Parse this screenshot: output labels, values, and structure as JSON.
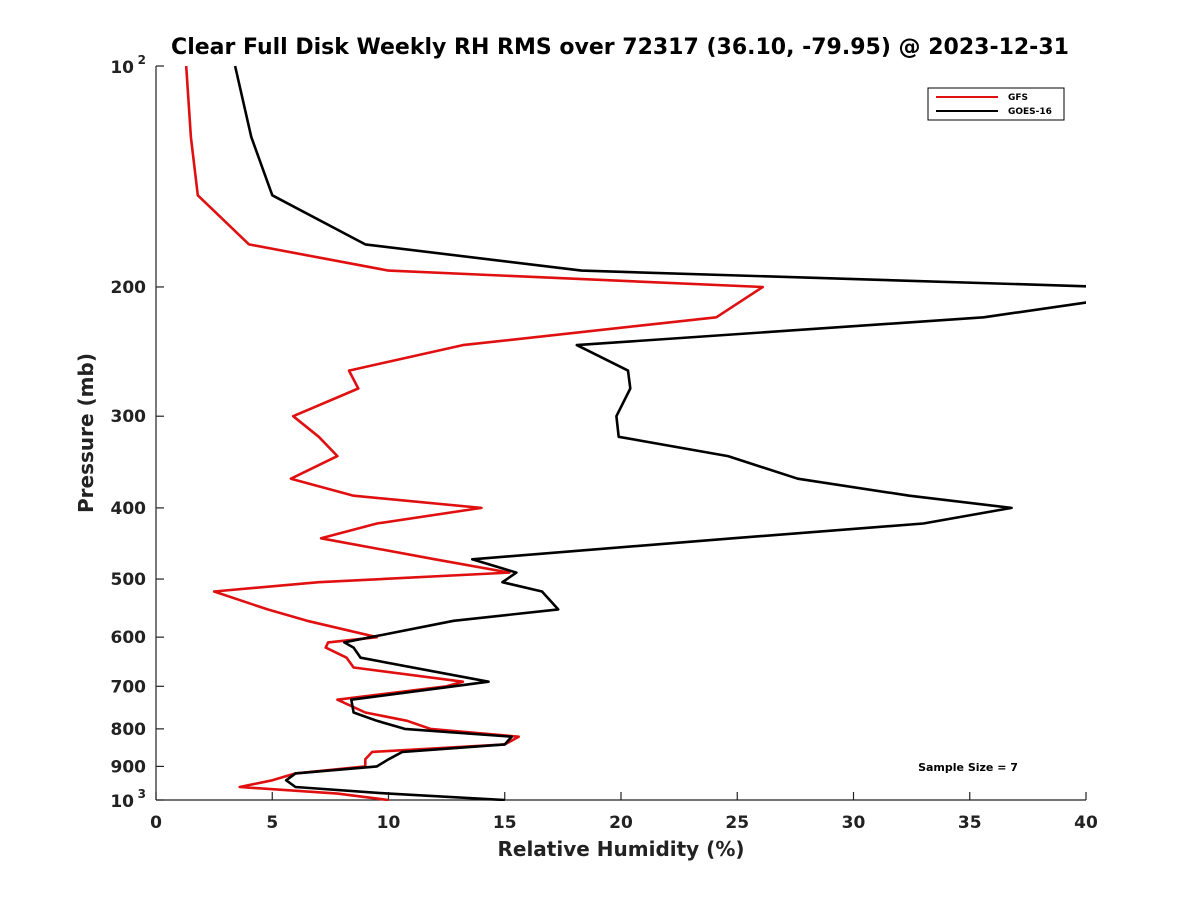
{
  "chart_data": {
    "type": "line",
    "title": "Clear Full Disk Weekly RH RMS over 72317 (36.10, -79.95) @ 2023-12-31",
    "xlabel": "Relative Humidity (%)",
    "ylabel": "Pressure (mb)",
    "xlim": [
      0,
      40
    ],
    "ylim": [
      100,
      1000
    ],
    "y_scale": "log",
    "y_direction": "reversed",
    "x_ticks": [
      "0",
      "5",
      "10",
      "15",
      "20",
      "25",
      "30",
      "35",
      "40"
    ],
    "x_tick_values": [
      0,
      5,
      10,
      15,
      20,
      25,
      30,
      35,
      40
    ],
    "y_ticks": [
      {
        "value": 100,
        "base": "10",
        "exp": "2"
      },
      {
        "value": 200,
        "label": "200"
      },
      {
        "value": 300,
        "label": "300"
      },
      {
        "value": 400,
        "label": "400"
      },
      {
        "value": 500,
        "label": "500"
      },
      {
        "value": 600,
        "label": "600"
      },
      {
        "value": 700,
        "label": "700"
      },
      {
        "value": 800,
        "label": "800"
      },
      {
        "value": 900,
        "label": "900"
      },
      {
        "value": 1000,
        "base": "10",
        "exp": "3"
      }
    ],
    "grid": false,
    "legend_position": "top-right",
    "annotation": "Sample Size = 7",
    "series": [
      {
        "name": "GFS",
        "color": "#e01010",
        "points": [
          [
            1.3,
            100
          ],
          [
            1.5,
            125
          ],
          [
            1.8,
            150
          ],
          [
            4.0,
            175
          ],
          [
            10.0,
            190
          ],
          [
            26.1,
            200
          ],
          [
            24.1,
            220
          ],
          [
            13.2,
            240
          ],
          [
            8.3,
            260
          ],
          [
            8.7,
            275
          ],
          [
            5.9,
            300
          ],
          [
            7.0,
            320
          ],
          [
            7.8,
            340
          ],
          [
            5.8,
            365
          ],
          [
            8.5,
            385
          ],
          [
            14.0,
            400
          ],
          [
            9.5,
            420
          ],
          [
            7.1,
            440
          ],
          [
            12.0,
            470
          ],
          [
            15.2,
            490
          ],
          [
            7.0,
            505
          ],
          [
            2.5,
            520
          ],
          [
            4.8,
            550
          ],
          [
            6.5,
            570
          ],
          [
            9.5,
            600
          ],
          [
            7.4,
            610
          ],
          [
            7.3,
            620
          ],
          [
            8.2,
            640
          ],
          [
            8.5,
            660
          ],
          [
            13.2,
            690
          ],
          [
            12.5,
            700
          ],
          [
            7.8,
            730
          ],
          [
            9.0,
            760
          ],
          [
            10.8,
            780
          ],
          [
            11.8,
            800
          ],
          [
            15.6,
            820
          ],
          [
            15.0,
            840
          ],
          [
            9.3,
            860
          ],
          [
            9.0,
            880
          ],
          [
            9.0,
            900
          ],
          [
            6.0,
            920
          ],
          [
            5.0,
            940
          ],
          [
            3.6,
            960
          ],
          [
            7.8,
            980
          ],
          [
            10.0,
            1000
          ]
        ]
      },
      {
        "name": "GOES-16",
        "color": "#000000",
        "points": [
          [
            3.4,
            100
          ],
          [
            4.1,
            125
          ],
          [
            5.0,
            150
          ],
          [
            9.0,
            175
          ],
          [
            18.3,
            190
          ],
          [
            41.0,
            200
          ],
          [
            40.0,
            210
          ],
          [
            35.6,
            220
          ],
          [
            18.1,
            240
          ],
          [
            20.3,
            260
          ],
          [
            20.4,
            275
          ],
          [
            19.8,
            300
          ],
          [
            19.9,
            320
          ],
          [
            24.6,
            340
          ],
          [
            27.6,
            365
          ],
          [
            32.4,
            385
          ],
          [
            36.8,
            400
          ],
          [
            33.0,
            420
          ],
          [
            24.8,
            440
          ],
          [
            13.6,
            470
          ],
          [
            15.5,
            490
          ],
          [
            14.9,
            505
          ],
          [
            16.6,
            520
          ],
          [
            17.3,
            550
          ],
          [
            12.8,
            570
          ],
          [
            8.1,
            610
          ],
          [
            8.5,
            620
          ],
          [
            8.8,
            640
          ],
          [
            14.3,
            690
          ],
          [
            12.8,
            700
          ],
          [
            8.4,
            730
          ],
          [
            8.5,
            760
          ],
          [
            9.5,
            780
          ],
          [
            10.7,
            800
          ],
          [
            15.3,
            820
          ],
          [
            15.0,
            840
          ],
          [
            10.6,
            860
          ],
          [
            10.0,
            880
          ],
          [
            9.5,
            900
          ],
          [
            6.0,
            920
          ],
          [
            5.6,
            940
          ],
          [
            6.0,
            960
          ],
          [
            10.0,
            980
          ],
          [
            15.0,
            1000
          ]
        ]
      }
    ]
  }
}
